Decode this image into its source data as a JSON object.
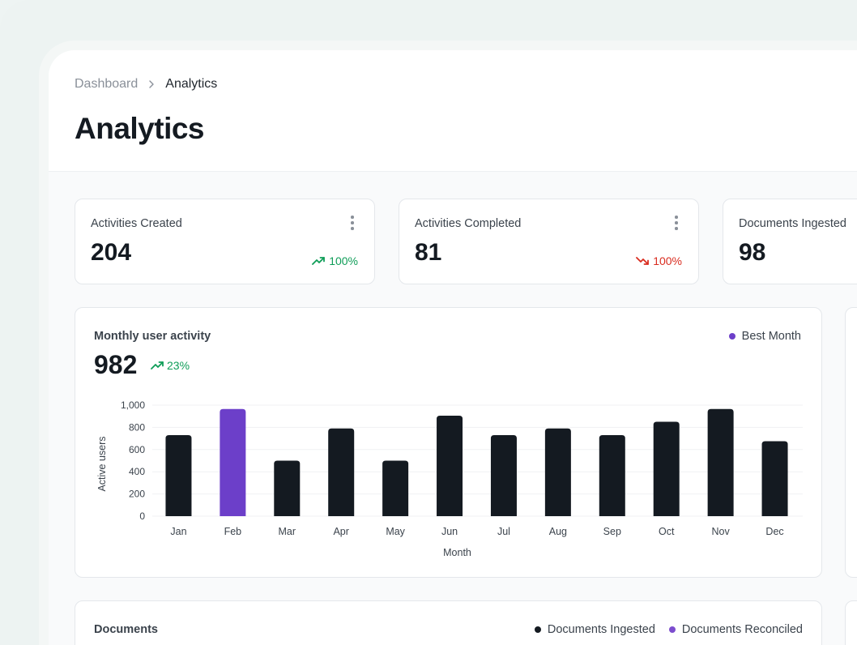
{
  "breadcrumb": {
    "parent": "Dashboard",
    "current": "Analytics"
  },
  "page": {
    "title": "Analytics"
  },
  "stats": [
    {
      "label": "Activities Created",
      "value": "204",
      "trend": "100%",
      "direction": "up"
    },
    {
      "label": "Activities Completed",
      "value": "81",
      "trend": "100%",
      "direction": "down"
    },
    {
      "label": "Documents Ingested",
      "value": "98"
    }
  ],
  "monthly": {
    "title": "Monthly user activity",
    "total": "982",
    "trend": "23%",
    "legend": "Best Month"
  },
  "colors": {
    "bar": "#141a21",
    "highlight": "#6c3fc9",
    "up": "#0f9d58",
    "down": "#d92d20",
    "reconciled": "#7c4dce"
  },
  "chart_data": {
    "type": "bar",
    "categories": [
      "Jan",
      "Feb",
      "Mar",
      "Apr",
      "May",
      "Jun",
      "Jul",
      "Aug",
      "Sep",
      "Oct",
      "Nov",
      "Dec"
    ],
    "values": [
      730,
      965,
      500,
      790,
      500,
      905,
      730,
      790,
      730,
      850,
      965,
      675
    ],
    "highlight_index": 1,
    "xlabel": "Month",
    "ylabel": "Active users",
    "ylim": [
      0,
      1000
    ],
    "yticks": [
      "0",
      "200",
      "400",
      "600",
      "800",
      "1,000"
    ],
    "ytick_values": [
      0,
      200,
      400,
      600,
      800,
      1000
    ],
    "grid": true,
    "legend": "top-right"
  },
  "documents": {
    "title": "Documents",
    "legend": [
      {
        "label": "Documents Ingested",
        "color": "#141a21"
      },
      {
        "label": "Documents Reconciled",
        "color": "#7c4dce"
      }
    ]
  }
}
